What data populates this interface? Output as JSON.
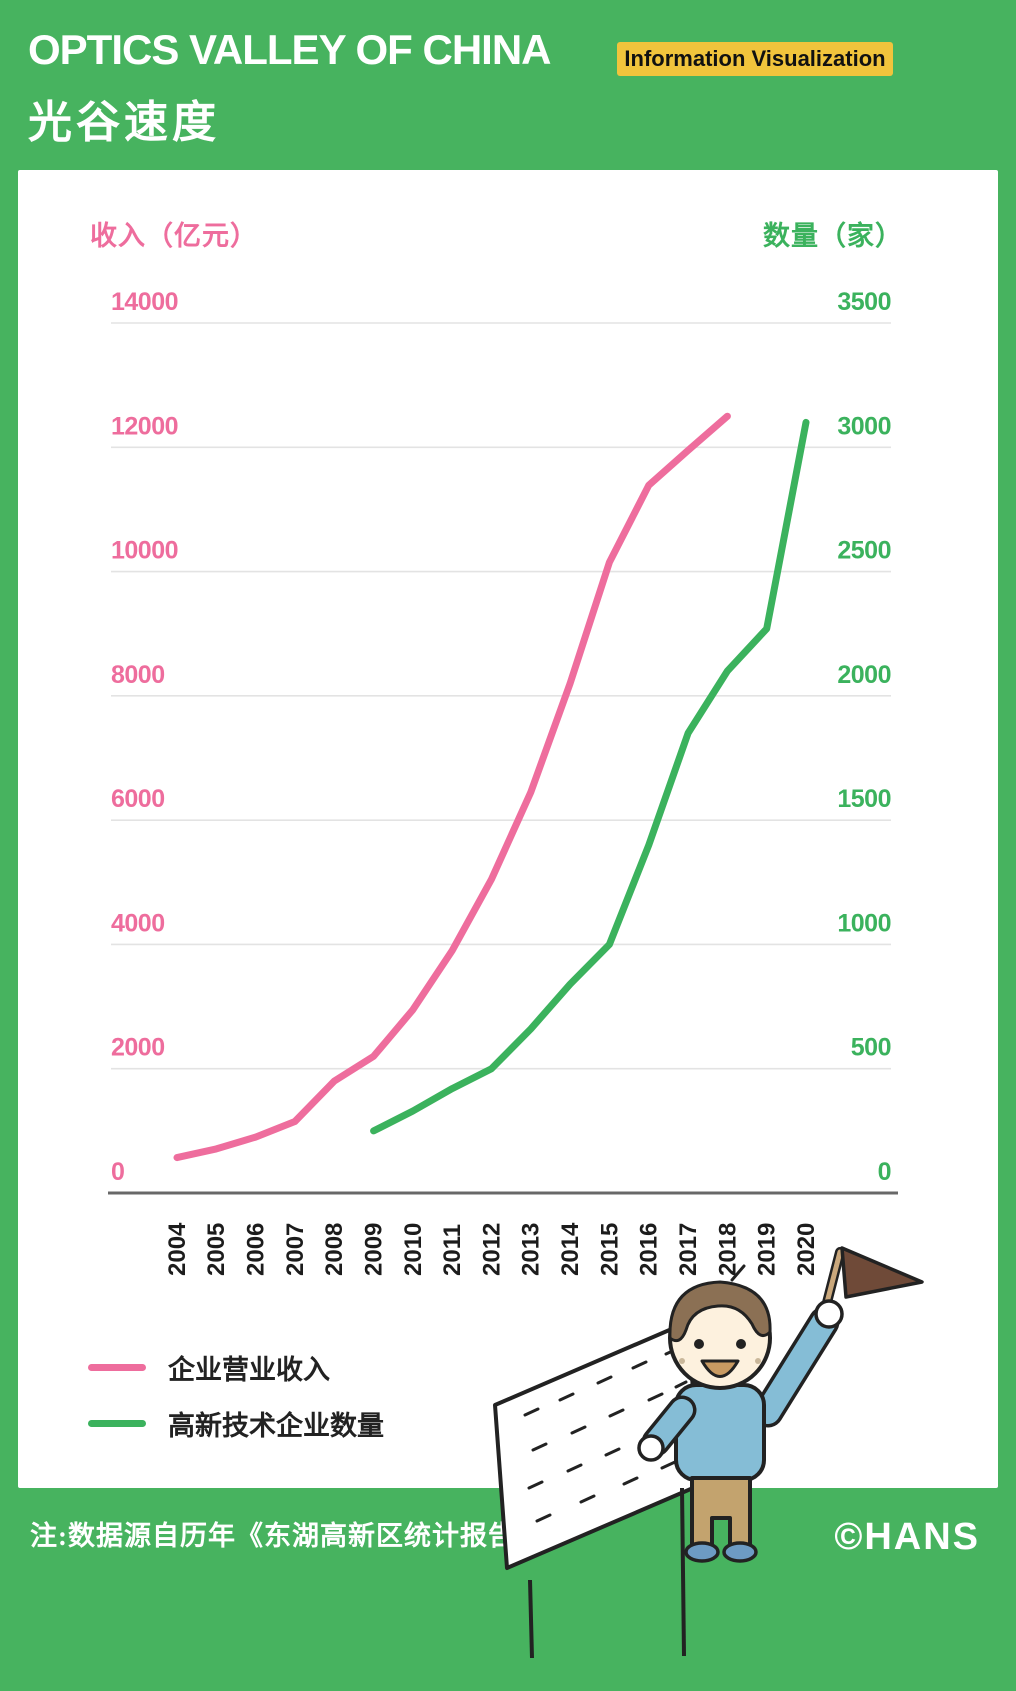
{
  "header": {
    "title_en": "OPTICS VALLEY OF CHINA",
    "title_cn": "光谷速度",
    "badge": "Information Visualization"
  },
  "chart_data": {
    "type": "line",
    "title": "光谷速度 OPTICS VALLEY OF CHINA",
    "x": [
      "2004",
      "2005",
      "2006",
      "2007",
      "2008",
      "2009",
      "2010",
      "2011",
      "2012",
      "2013",
      "2014",
      "2015",
      "2016",
      "2017",
      "2018",
      "2019",
      "2020"
    ],
    "left_axis": {
      "title": "收入（亿元）",
      "ticks": [
        0,
        2000,
        4000,
        6000,
        8000,
        10000,
        12000,
        14000
      ],
      "range": [
        0,
        14000
      ],
      "color": "#ee6d9d"
    },
    "right_axis": {
      "title": "数量（家）",
      "ticks": [
        0,
        500,
        1000,
        1500,
        2000,
        2500,
        3000,
        3500
      ],
      "range": [
        0,
        3500
      ],
      "color": "#3bb25d"
    },
    "grid": true,
    "legend_position": "bottom-left",
    "series": [
      {
        "name": "企业营业收入",
        "axis": "left",
        "color": "#ee6d9d",
        "values": [
          570,
          710,
          900,
          1150,
          1800,
          2200,
          2950,
          3900,
          5050,
          6450,
          8200,
          10150,
          11390,
          11950,
          12500,
          null,
          null
        ]
      },
      {
        "name": "高新技术企业数量",
        "axis": "right",
        "color": "#3bb25d",
        "values": [
          null,
          null,
          null,
          null,
          null,
          250,
          330,
          420,
          500,
          660,
          840,
          1000,
          1400,
          1850,
          2100,
          2270,
          3100
        ]
      }
    ]
  },
  "footer": {
    "note": "注:数据源自历年《东湖高新区统计报告》",
    "brand": "©HANS"
  },
  "colors": {
    "background_green": "#47b35f",
    "badge_yellow": "#f1c43c",
    "revenue_pink": "#ee6d9d",
    "hightech_green": "#3bb25d",
    "gridline": "#e3e3e3",
    "zero_axis": "#686868",
    "year_label": "#1c1c1c"
  }
}
